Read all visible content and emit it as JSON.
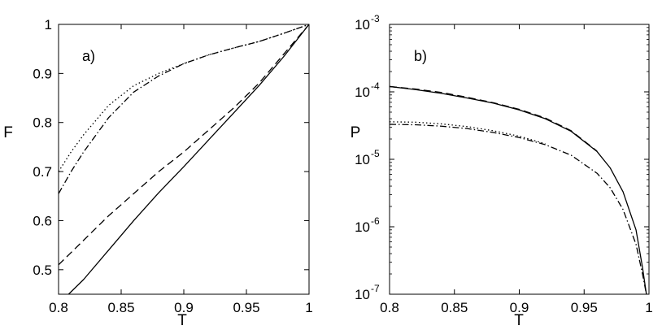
{
  "chart_data": [
    {
      "type": "line",
      "panel_label": "a)",
      "xlabel": "T",
      "ylabel": "F",
      "xlim": [
        0.8,
        1.0
      ],
      "ylim": [
        0.45,
        1.0
      ],
      "yscale": "linear",
      "grid": false,
      "xticks": [
        "0.8",
        "0.85",
        "0.9",
        "0.95",
        "1"
      ],
      "xtick_values": [
        0.8,
        0.85,
        0.9,
        0.95,
        1.0
      ],
      "yticks": [
        "0.5",
        "0.6",
        "0.7",
        "0.8",
        "0.9",
        "1"
      ],
      "ytick_values": [
        0.5,
        0.6,
        0.7,
        0.8,
        0.9,
        1.0
      ],
      "series": [
        {
          "style": "solid",
          "x": [
            0.808,
            0.82,
            0.84,
            0.86,
            0.88,
            0.9,
            0.92,
            0.94,
            0.96,
            0.98,
            1.0
          ],
          "y": [
            0.45,
            0.48,
            0.54,
            0.6,
            0.657,
            0.71,
            0.765,
            0.82,
            0.875,
            0.935,
            1.0
          ]
        },
        {
          "style": "dashed",
          "x": [
            0.8,
            0.82,
            0.84,
            0.86,
            0.88,
            0.9,
            0.92,
            0.94,
            0.96,
            0.98,
            1.0
          ],
          "y": [
            0.51,
            0.56,
            0.61,
            0.655,
            0.7,
            0.74,
            0.785,
            0.83,
            0.88,
            0.94,
            1.0
          ]
        },
        {
          "style": "dotted",
          "x": [
            0.8,
            0.81,
            0.82,
            0.84,
            0.86,
            0.88,
            0.9,
            0.92,
            0.94,
            0.96,
            0.98,
            1.0
          ],
          "y": [
            0.7,
            0.74,
            0.775,
            0.835,
            0.875,
            0.9,
            0.92,
            0.938,
            0.952,
            0.965,
            0.982,
            1.0
          ]
        },
        {
          "style": "dashdot",
          "x": [
            0.8,
            0.81,
            0.82,
            0.84,
            0.86,
            0.88,
            0.9,
            0.92,
            0.94,
            0.96,
            0.98,
            1.0
          ],
          "y": [
            0.655,
            0.7,
            0.74,
            0.81,
            0.862,
            0.895,
            0.92,
            0.938,
            0.952,
            0.965,
            0.982,
            1.0
          ]
        }
      ]
    },
    {
      "type": "line",
      "panel_label": "b)",
      "xlabel": "T",
      "ylabel": "P",
      "xlim": [
        0.8,
        1.0
      ],
      "ylim": [
        1e-07,
        0.001
      ],
      "yscale": "log",
      "grid": false,
      "xticks": [
        "0.8",
        "0.85",
        "0.9",
        "0.95",
        "1"
      ],
      "xtick_values": [
        0.8,
        0.85,
        0.9,
        0.95,
        1.0
      ],
      "yticks": [
        {
          "base": "10",
          "exp": "-7",
          "value": 1e-07
        },
        {
          "base": "10",
          "exp": "-6",
          "value": 1e-06
        },
        {
          "base": "10",
          "exp": "-5",
          "value": 1e-05
        },
        {
          "base": "10",
          "exp": "-4",
          "value": 0.0001
        },
        {
          "base": "10",
          "exp": "-3",
          "value": 0.001
        }
      ],
      "series": [
        {
          "style": "solid",
          "x": [
            0.8,
            0.82,
            0.84,
            0.86,
            0.88,
            0.9,
            0.92,
            0.94,
            0.96,
            0.97,
            0.98,
            0.99,
            0.995,
            0.998
          ],
          "y": [
            0.00012,
            0.000108,
            9.5e-05,
            8.1e-05,
            6.8e-05,
            5.4e-05,
            4e-05,
            2.6e-05,
            1.3e-05,
            7.5e-06,
            3.3e-06,
            9e-07,
            2.5e-07,
            1e-07
          ]
        },
        {
          "style": "dashed",
          "x": [
            0.8,
            0.82,
            0.84,
            0.86,
            0.88,
            0.9,
            0.92,
            0.94,
            0.96
          ],
          "y": [
            0.00012,
            0.00011,
            9.8e-05,
            8.3e-05,
            6.9e-05,
            5.5e-05,
            4.1e-05,
            2.65e-05,
            1.32e-05
          ]
        },
        {
          "style": "dotted",
          "x": [
            0.8,
            0.82,
            0.84,
            0.86,
            0.88,
            0.9,
            0.92
          ],
          "y": [
            3.6e-05,
            3.55e-05,
            3.35e-05,
            3.05e-05,
            2.65e-05,
            2.2e-05,
            1.7e-05
          ]
        },
        {
          "style": "dashdot",
          "x": [
            0.8,
            0.82,
            0.84,
            0.86,
            0.88,
            0.9,
            0.92,
            0.94,
            0.96,
            0.97,
            0.98,
            0.99,
            0.995,
            0.998
          ],
          "y": [
            3.3e-05,
            3.25e-05,
            3.1e-05,
            2.85e-05,
            2.5e-05,
            2.1e-05,
            1.65e-05,
            1.15e-05,
            6.2e-06,
            3.8e-06,
            1.8e-06,
            5.5e-07,
            2e-07,
            1e-07
          ]
        }
      ]
    }
  ]
}
